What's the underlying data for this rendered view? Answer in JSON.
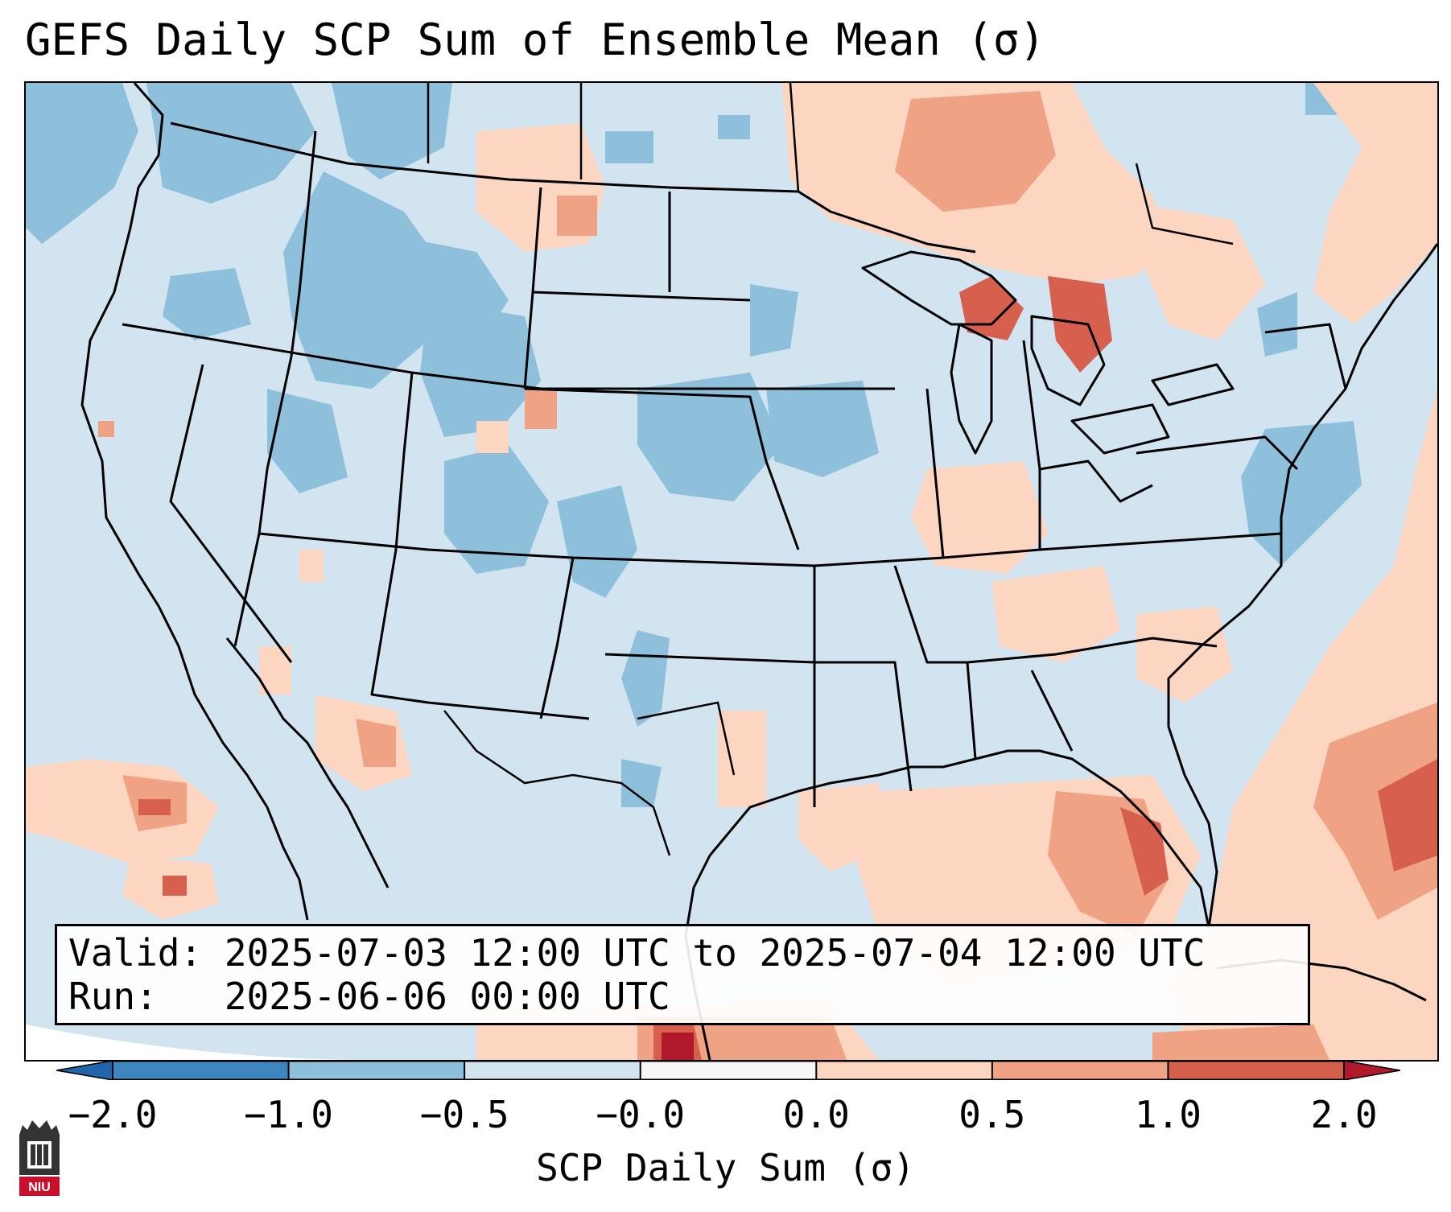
{
  "title": "GEFS Daily SCP Sum of Ensemble Mean (σ)",
  "info": {
    "valid_line": "Valid: 2025-07-03 12:00 UTC to 2025-07-04 12:00 UTC",
    "run_line": "Run:   2025-06-06 00:00 UTC"
  },
  "colorbar": {
    "label": "SCP Daily Sum (σ)",
    "tick_labels": [
      "−2.0",
      "−1.0",
      "−0.5",
      "−0.0",
      "0.0",
      "0.5",
      "1.0",
      "2.0"
    ],
    "segment_colors": [
      "#3f86bf",
      "#8ec0dc",
      "#d1e4f0",
      "#f7f7f7",
      "#fdd6c2",
      "#f0a285",
      "#d6604d"
    ],
    "extend_low_color": "#2166ac",
    "extend_high_color": "#b2182b"
  },
  "logo": {
    "text": "NIU",
    "color": "#c8102e"
  },
  "colors": {
    "ocean_land_base": "#d1e4f0",
    "neg_light": "#8ec0dc",
    "pos_light": "#fdd6c2",
    "pos_mid": "#f0a285",
    "pos_strong": "#d6604d",
    "pos_extreme": "#b2182b"
  }
}
